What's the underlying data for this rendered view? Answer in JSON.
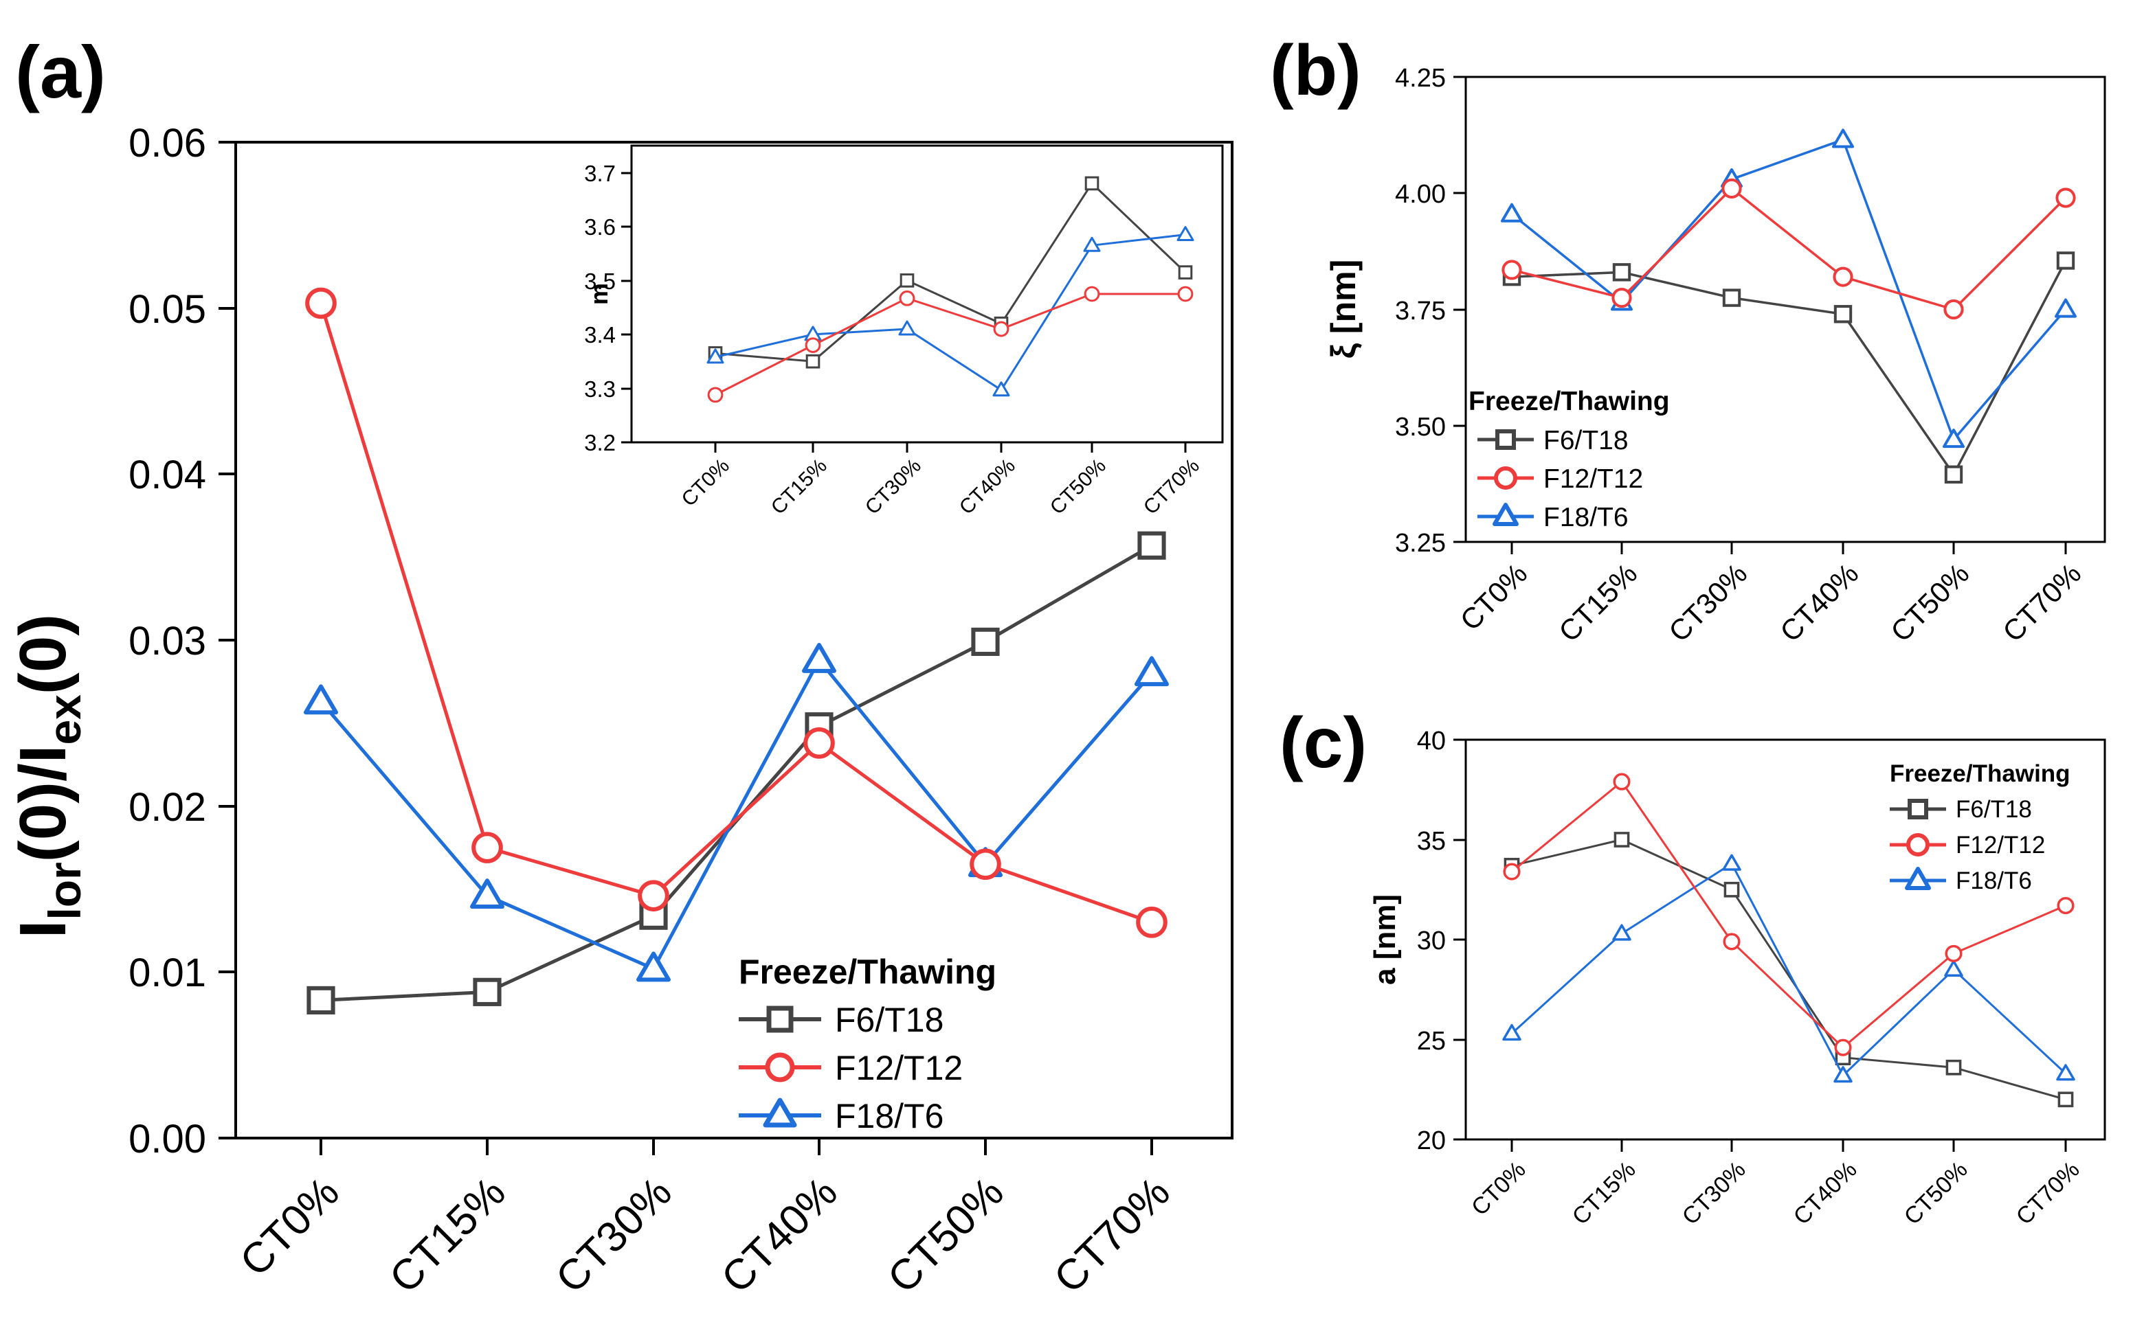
{
  "colors": {
    "F6/T18": "#444444",
    "F12/T12": "#ee3b3b",
    "F18/T6": "#1f6fdb"
  },
  "chart_data": [
    {
      "panel": "(a)",
      "type": "line",
      "title": "",
      "xlabel": "",
      "ylabel": "I_lor(0)/I_ex(0)",
      "ylabel_parts": {
        "base1": "I",
        "sub1": "lor",
        "mid": "(0)/I",
        "sub2": "ex",
        "tail": "(0)"
      },
      "categories": [
        "CT0%",
        "CT15%",
        "CT30%",
        "CT40%",
        "CT50%",
        "CT70%"
      ],
      "ylim": [
        0,
        0.06
      ],
      "yticks": [
        "0.00",
        "0.01",
        "0.02",
        "0.03",
        "0.04",
        "0.05",
        "0.06"
      ],
      "legend_title": "Freeze/Thawing",
      "legend_position": "lower-right",
      "series": [
        {
          "name": "F6/T18",
          "marker": "square",
          "values": [
            0.0083,
            0.0088,
            0.0134,
            0.0248,
            0.0299,
            0.0357
          ]
        },
        {
          "name": "F12/T12",
          "marker": "circle",
          "values": [
            0.0503,
            0.0175,
            0.0146,
            0.0238,
            0.0165,
            0.013
          ]
        },
        {
          "name": "F18/T6",
          "marker": "triangle",
          "values": [
            0.0263,
            0.0146,
            0.0102,
            0.0288,
            0.0165,
            0.028
          ]
        }
      ]
    },
    {
      "panel": "",
      "type": "line",
      "title": "",
      "xlabel": "",
      "ylabel": "m",
      "categories": [
        "CT0%",
        "CT15%",
        "CT30%",
        "CT40%",
        "CT50%",
        "CT70%"
      ],
      "ylim": [
        3.2,
        3.75
      ],
      "yticks": [
        "3.2",
        "3.3",
        "3.4",
        "3.5",
        "3.6",
        "3.7"
      ],
      "series": [
        {
          "name": "F6/T18",
          "marker": "square",
          "values": [
            3.365,
            3.35,
            3.5,
            3.42,
            3.68,
            3.515
          ]
        },
        {
          "name": "F12/T12",
          "marker": "circle",
          "values": [
            3.288,
            3.38,
            3.467,
            3.41,
            3.475,
            3.475
          ]
        },
        {
          "name": "F18/T6",
          "marker": "triangle",
          "values": [
            3.358,
            3.4,
            3.41,
            3.297,
            3.565,
            3.585
          ]
        }
      ]
    },
    {
      "panel": "(b)",
      "type": "line",
      "title": "",
      "xlabel": "",
      "ylabel": "ξ [nm]",
      "categories": [
        "CT0%",
        "CT15%",
        "CT30%",
        "CT40%",
        "CT50%",
        "CT70%"
      ],
      "ylim": [
        3.25,
        4.25
      ],
      "yticks": [
        "3.25",
        "3.50",
        "3.75",
        "4.00",
        "4.25"
      ],
      "legend_title": "Freeze/Thawing",
      "legend_position": "lower-left",
      "series": [
        {
          "name": "F6/T18",
          "marker": "square",
          "values": [
            3.82,
            3.83,
            3.775,
            3.74,
            3.395,
            3.855
          ]
        },
        {
          "name": "F12/T12",
          "marker": "circle",
          "values": [
            3.835,
            3.775,
            4.01,
            3.82,
            3.75,
            3.99
          ]
        },
        {
          "name": "F18/T6",
          "marker": "triangle",
          "values": [
            3.955,
            3.765,
            4.03,
            4.115,
            3.47,
            3.75
          ]
        }
      ]
    },
    {
      "panel": "(c)",
      "type": "line",
      "title": "",
      "xlabel": "",
      "ylabel": "a [nm]",
      "categories": [
        "CT0%",
        "CT15%",
        "CT30%",
        "CT40%",
        "CT50%",
        "CT70%"
      ],
      "ylim": [
        20,
        40
      ],
      "yticks": [
        "20",
        "25",
        "30",
        "35",
        "40"
      ],
      "legend_title": "Freeze/Thawing",
      "legend_position": "top-right",
      "series": [
        {
          "name": "F6/T18",
          "marker": "square",
          "values": [
            33.7,
            35.0,
            32.5,
            24.1,
            23.6,
            22.0
          ]
        },
        {
          "name": "F12/T12",
          "marker": "circle",
          "values": [
            33.4,
            37.9,
            29.9,
            24.6,
            29.3,
            31.7
          ]
        },
        {
          "name": "F18/T6",
          "marker": "triangle",
          "values": [
            25.3,
            30.3,
            33.8,
            23.2,
            28.5,
            23.3
          ]
        }
      ]
    }
  ]
}
